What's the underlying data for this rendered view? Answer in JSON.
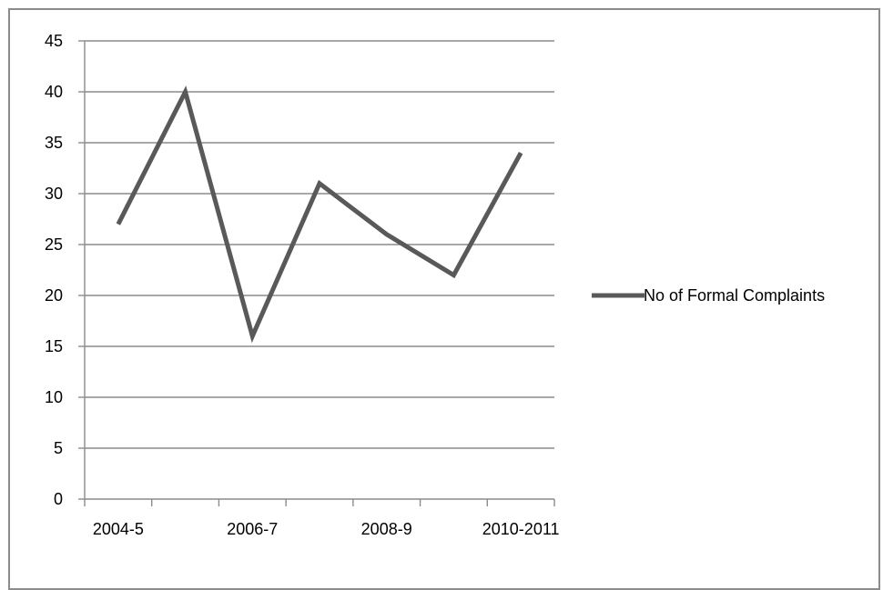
{
  "chart_data": {
    "type": "line",
    "title": "",
    "xlabel": "",
    "ylabel": "",
    "categories": [
      "2004-5",
      "",
      "2006-7",
      "",
      "2008-9",
      "",
      "2010-2011"
    ],
    "x_tick_labels": [
      "2004-5",
      "2006-7",
      "2008-9",
      "2010-2011"
    ],
    "y_ticks": [
      0,
      5,
      10,
      15,
      20,
      25,
      30,
      35,
      40,
      45
    ],
    "ylim": [
      0,
      45
    ],
    "grid": true,
    "legend_position": "right",
    "series": [
      {
        "name": "No of Formal Complaints",
        "values": [
          27,
          40,
          16,
          31,
          26,
          22,
          34
        ],
        "color": "#595959"
      }
    ]
  }
}
